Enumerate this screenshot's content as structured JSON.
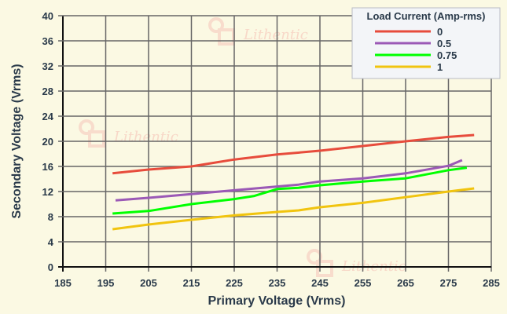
{
  "chart_data": {
    "type": "line",
    "title": "",
    "xlabel": "Primary Voltage (Vrms)",
    "ylabel": "Secondary Voltage (Vrms)",
    "xlim": [
      185,
      285
    ],
    "ylim": [
      0,
      40
    ],
    "xticks": [
      "185",
      "195",
      "205",
      "215",
      "225",
      "235",
      "245",
      "255",
      "265",
      "275",
      "285"
    ],
    "yticks": [
      "0",
      "4",
      "8",
      "12",
      "16",
      "20",
      "24",
      "28",
      "32",
      "36",
      "40"
    ],
    "grid": true,
    "legend": {
      "title": "Load Current (Amp-rms)",
      "placement": "top-right"
    },
    "series": [
      {
        "name": "0",
        "color": "#e74c3c",
        "x": [
          196.6,
          205,
          215,
          225,
          235,
          245,
          255,
          265,
          275,
          281
        ],
        "y": [
          14.9,
          15.5,
          16.0,
          17.1,
          17.9,
          18.5,
          19.25,
          20.0,
          20.7,
          21.0
        ]
      },
      {
        "name": "0.5",
        "color": "#9b59b6",
        "x": [
          197.3,
          205,
          215,
          225,
          235,
          240,
          245,
          255,
          265,
          275,
          278.2
        ],
        "y": [
          10.6,
          11.0,
          11.6,
          12.2,
          12.8,
          13.1,
          13.6,
          14.1,
          14.9,
          16.1,
          17.0
        ]
      },
      {
        "name": "0.75",
        "color": "#00ff00",
        "x": [
          196.6,
          205,
          215,
          225,
          229.7,
          235,
          240,
          245,
          255,
          265,
          275,
          279.3
        ],
        "y": [
          8.5,
          8.9,
          10.0,
          10.8,
          11.3,
          12.4,
          12.6,
          13.0,
          13.6,
          14.1,
          15.4,
          15.8
        ]
      },
      {
        "name": "1",
        "color": "#f1c40f",
        "x": [
          196.6,
          205,
          215,
          225,
          235,
          240,
          245,
          255,
          265,
          275,
          281
        ],
        "y": [
          6.0,
          6.75,
          7.5,
          8.2,
          8.75,
          9.0,
          9.5,
          10.2,
          11.1,
          12.0,
          12.5
        ]
      }
    ]
  },
  "watermark": "Lithentic"
}
